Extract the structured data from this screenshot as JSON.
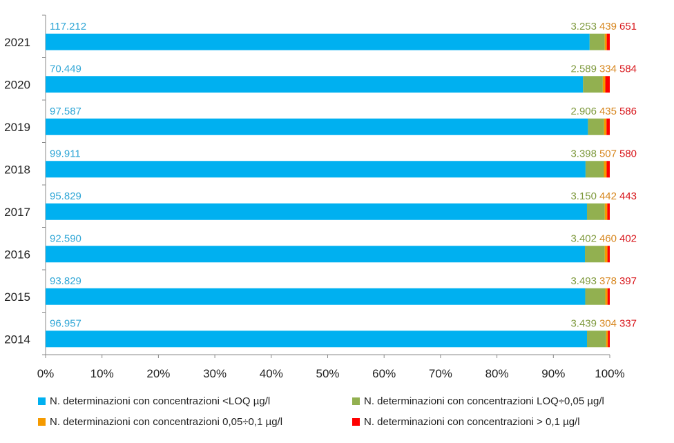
{
  "chart_data": {
    "type": "bar",
    "orientation": "horizontal",
    "stacked": "percent",
    "categories": [
      "2021",
      "2020",
      "2019",
      "2018",
      "2017",
      "2016",
      "2015",
      "2014"
    ],
    "series": [
      {
        "name": "N. determinazioni con concentrazioni <LOQ µg/l",
        "color": "#00B0F0",
        "values": [
          117212,
          70449,
          97587,
          99911,
          95829,
          92590,
          93829,
          96957
        ],
        "labels": [
          "117.212",
          "70.449",
          "97.587",
          "99.911",
          "95.829",
          "92.590",
          "93.829",
          "96.957"
        ]
      },
      {
        "name": "N. determinazioni con concentrazioni LOQ÷0,05 µg/l",
        "color": "#92B050",
        "values": [
          3253,
          2589,
          2906,
          3398,
          3150,
          3402,
          3493,
          3439
        ],
        "labels": [
          "3.253",
          "2.589",
          "2.906",
          "3.398",
          "3.150",
          "3.402",
          "3.493",
          "3.439"
        ]
      },
      {
        "name": "N. determinazioni con concentrazioni 0,05÷0,1 µg/l",
        "color": "#F59A00",
        "values": [
          439,
          334,
          435,
          507,
          442,
          460,
          378,
          304
        ],
        "labels": [
          "439",
          "334",
          "435",
          "507",
          "442",
          "460",
          "378",
          "304"
        ]
      },
      {
        "name": "N. determinazioni con concentrazioni > 0,1 µg/l",
        "color": "#FF0000",
        "values": [
          651,
          584,
          586,
          580,
          443,
          402,
          397,
          337
        ],
        "labels": [
          "651",
          "584",
          "586",
          "580",
          "443",
          "402",
          "397",
          "337"
        ]
      }
    ],
    "label_colors": [
      "#2FA6D6",
      "#7F9A3E",
      "#D7861E",
      "#D8161B"
    ],
    "x_ticks": [
      "0%",
      "10%",
      "20%",
      "30%",
      "40%",
      "50%",
      "60%",
      "70%",
      "80%",
      "90%",
      "100%"
    ],
    "xlim": [
      0,
      100
    ],
    "grid": false,
    "legend_position": "bottom"
  }
}
